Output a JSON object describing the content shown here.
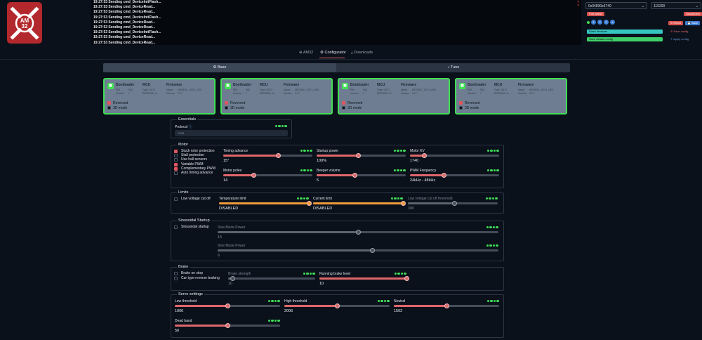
{
  "log": {
    "lines": [
      "19:27:53  Sending cmd_DeviceInitFlash...",
      "19:27:53  Sending cmd_DeviceRead...",
      "19:27:53  Sending cmd_DeviceRead...",
      "19:27:53  Sending cmd_DeviceInitFlash...",
      "19:27:53  Sending cmd_DeviceRead...",
      "19:27:53  Sending cmd_DeviceRead...",
      "19:27:53  Sending cmd_DeviceInitFlash...",
      "19:27:53  Sending cmd_DeviceRead...",
      "19:27:53  Sending cmd_DeviceRead..."
    ]
  },
  "connection": {
    "port": "0x04830x5740",
    "baud": "115200",
    "port_select": "Port select",
    "disconnect": "Disconnect",
    "reset": "Reset",
    "save": "Save",
    "flash_firmware": "Flash firmware",
    "save_config": "Save config",
    "save_default": "Save default config",
    "apply_config": "Apply config",
    "motor_numbers": [
      "1",
      "2",
      "3",
      "4"
    ]
  },
  "nav": {
    "tabs": [
      "AM32",
      "Configurator",
      "Downloads"
    ]
  },
  "segment": {
    "base": "Base",
    "tune": "Tune"
  },
  "esc_cards": [
    {
      "bootloader": "Bootloader",
      "mcu": "MCU",
      "firmware": "Firmware",
      "rows": [
        "PIN",
        "PA2",
        "Type: G071",
        "Name",
        "NEOESC_G071_DEV"
      ],
      "rows2": [
        "Version",
        "7",
        "EEPROM: v1",
        "Version",
        "2.17"
      ],
      "reversed": "Reversed",
      "mode3d": "3D mode"
    },
    {
      "bootloader": "Bootloader",
      "mcu": "MCU",
      "firmware": "Firmware",
      "rows": [
        "PIN",
        "PA2",
        "Type: G071",
        "Name",
        "NEOESC_G071_DEV"
      ],
      "rows2": [
        "Version",
        "7",
        "EEPROM: v1",
        "Version",
        "2.17"
      ],
      "reversed": "Reversed",
      "mode3d": "3D mode"
    },
    {
      "bootloader": "Bootloader",
      "mcu": "MCU",
      "firmware": "Firmware",
      "rows": [
        "PIN",
        "PA2",
        "Type: G071",
        "Name",
        "NEOESC_G071_DEV"
      ],
      "rows2": [
        "Version",
        "7",
        "EEPROM: v1",
        "Version",
        "2.17"
      ],
      "reversed": "Reversed",
      "mode3d": "3D mode"
    },
    {
      "bootloader": "Bootloader",
      "mcu": "MCU",
      "firmware": "Firmware",
      "rows": [
        "PIN",
        "PA2",
        "Type: G071",
        "Name",
        "NEOESC_G071_DEV"
      ],
      "rows2": [
        "Version",
        "7",
        "EEPROM: v1",
        "Version",
        "2.17"
      ],
      "reversed": "Reversed",
      "mode3d": "3D mode"
    }
  ],
  "essentials": {
    "title": "Essentials",
    "protocol_label": "Protocol",
    "protocol_value": "Auto"
  },
  "motor": {
    "title": "Motor",
    "checks": [
      {
        "label": "Stuck rotor protection",
        "on": true
      },
      {
        "label": "Stall protection",
        "on": false
      },
      {
        "label": "Use hall sensors",
        "on": false
      },
      {
        "label": "Variable PWM",
        "on": true
      },
      {
        "label": "Complementary PWM",
        "on": true
      },
      {
        "label": "Auto timing advance",
        "on": false
      }
    ],
    "timing_label": "Timing advance",
    "timing_value": "15°",
    "timing_pct": 0.62,
    "startup_label": "Startup power",
    "startup_value": "100%",
    "startup_pct": 0.47,
    "kv_label": "Motor KV",
    "kv_value": "1740",
    "kv_pct": 0.16,
    "poles_label": "Motor poles",
    "poles_value": "14",
    "poles_pct": 0.34,
    "beeper_label": "Beeper volume",
    "beeper_value": "5",
    "beeper_pct": 0.43,
    "pwm_label": "PWM Frequency",
    "pwm_value": "24kHz - 48kHz",
    "pwm_pct": 0.38
  },
  "limits": {
    "title": "Limits",
    "low_voltage": "Low voltage cut off",
    "temp_label": "Temperature limit",
    "temp_value": "DISABLED",
    "temp_pct": 1.0,
    "current_label": "Current limit",
    "current_value": "DISABLED",
    "current_pct": 1.0,
    "lv_threshold_label": "Low voltage cut off threshold",
    "lv_threshold_value": "300",
    "lv_threshold_pct": 0.52
  },
  "sinusoidal": {
    "title": "Sinusoidal Startup",
    "check": "Sinusoidal startup",
    "min_label": "Sine Mode Power",
    "min_value": "15",
    "min_pct": 0.5,
    "max_label": "Sine Mode Power",
    "max_value": "6",
    "max_pct": 0.55
  },
  "brake": {
    "title": "Brake",
    "brake_on_stop": "Brake on stop",
    "car_reverse": "Car type reverse braking",
    "strength_label": "Brake strength",
    "strength_value": "10",
    "strength_pct": 0.05,
    "running_label": "Running brake level",
    "running_value": "10",
    "running_pct": 1.0
  },
  "servo": {
    "title": "Servo settings",
    "low_label": "Low threshold",
    "low_value": "1006",
    "low_pct": 0.5,
    "high_label": "High threshold",
    "high_value": "2006",
    "high_pct": 0.5,
    "neutral_label": "Neutral",
    "neutral_value": "1502",
    "neutral_pct": 0.5,
    "dead_label": "Dead band",
    "dead_value": "50",
    "dead_pct": 0.5
  }
}
